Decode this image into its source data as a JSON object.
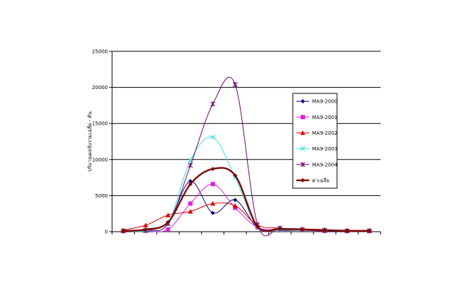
{
  "chart_data": {
    "type": "line",
    "title": "",
    "xlabel": "",
    "ylabel": "ปริมาณผลจับรวมเฉลี่ย - ตัน",
    "ylim": [
      0,
      25000
    ],
    "yticks": [
      "0",
      "5000",
      "10000",
      "15000",
      "20000",
      "25000"
    ],
    "grid": true,
    "legend_position": "right",
    "x": [
      1,
      2,
      3,
      4,
      5,
      6,
      7,
      8,
      9,
      10,
      11,
      12
    ],
    "series": [
      {
        "name": "MA9-2000",
        "color": "#000080",
        "marker": "diamond",
        "line_width": 1,
        "values": [
          100,
          200,
          1300,
          7000,
          2600,
          4400,
          600,
          200,
          200,
          100,
          100,
          100
        ]
      },
      {
        "name": "MA9-2001",
        "color": "#e020e0",
        "marker": "square",
        "line_width": 1,
        "values": [
          100,
          100,
          300,
          3900,
          6600,
          3300,
          600,
          300,
          200,
          100,
          100,
          100
        ]
      },
      {
        "name": "MA9-2002",
        "color": "#e00000",
        "marker": "triangle",
        "line_width": 1,
        "values": [
          200,
          900,
          2300,
          2800,
          3900,
          3600,
          900,
          500,
          400,
          300,
          200,
          200
        ]
      },
      {
        "name": "MA9-2003",
        "color": "#40e0e0",
        "marker": "x",
        "line_width": 1,
        "values": [
          100,
          100,
          1200,
          9900,
          13100,
          7500,
          600,
          300,
          200,
          200,
          100,
          100
        ]
      },
      {
        "name": "MA9-2004",
        "color": "#6a0a6a",
        "marker": "star",
        "line_width": 1,
        "values": [
          100,
          200,
          1100,
          9200,
          17700,
          20400,
          1000,
          500,
          300,
          200,
          100,
          100
        ]
      },
      {
        "name": "ค่าเฉลี่ย",
        "color": "#7a0a0a",
        "marker": "diamond",
        "line_width": 2.4,
        "values": [
          100,
          300,
          1300,
          6600,
          8700,
          7800,
          700,
          400,
          300,
          200,
          100,
          100
        ]
      }
    ]
  }
}
